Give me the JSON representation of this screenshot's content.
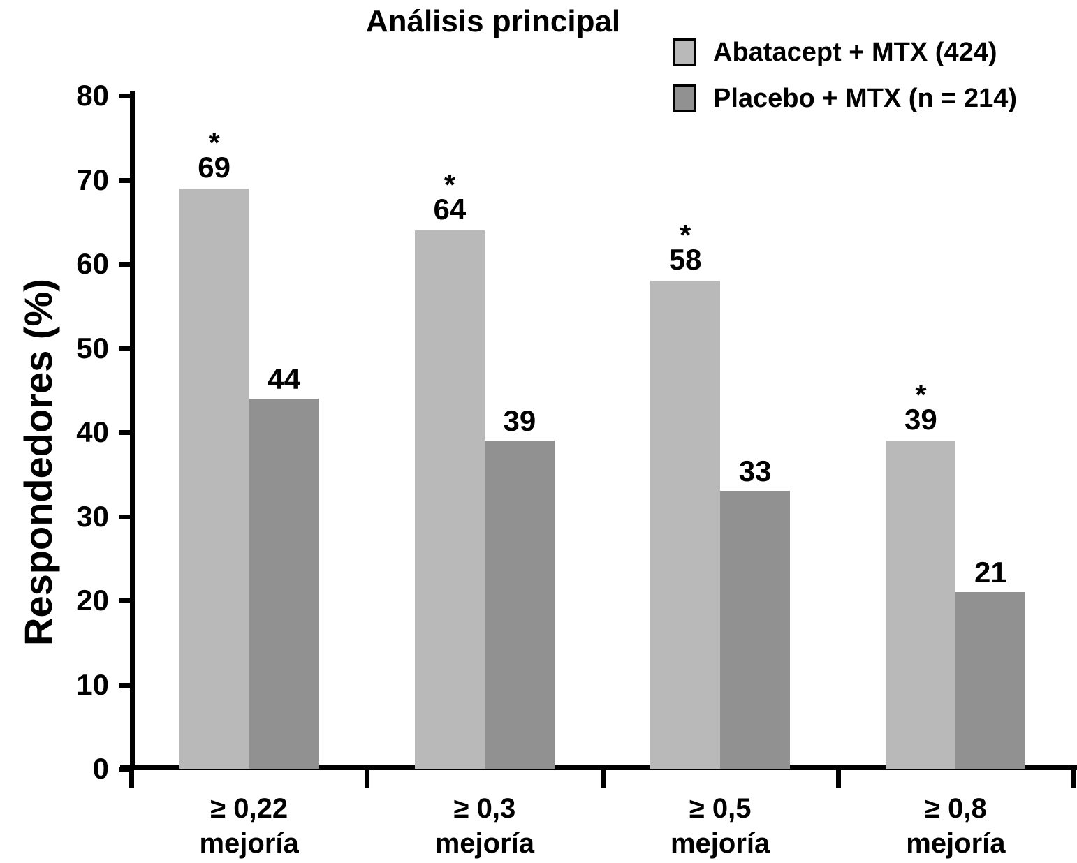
{
  "title": "Análisis principal",
  "y_axis_label": "Respondedores (%)",
  "legend": {
    "items": [
      {
        "label": "Abatacept + MTX (424)",
        "color": "#b9b9b9"
      },
      {
        "label": "Placebo + MTX (n = 214)",
        "color": "#919191"
      }
    ]
  },
  "chart_data": {
    "type": "bar",
    "title": "Análisis principal",
    "ylabel": "Respondedores (%)",
    "ylim": [
      0,
      80
    ],
    "yticks": [
      0,
      10,
      20,
      30,
      40,
      50,
      60,
      70,
      80
    ],
    "grid": false,
    "legend_position": "top-right",
    "categories": [
      "≥ 0,22\nmejoría",
      "≥ 0,3\nmejoría",
      "≥ 0,5\nmejoría",
      "≥ 0,8\nmejoría"
    ],
    "significance_marker": "*",
    "series": [
      {
        "name": "Abatacept + MTX (424)",
        "color": "#b9b9b9",
        "values": [
          69,
          64,
          58,
          39
        ],
        "significant": [
          true,
          true,
          true,
          true
        ]
      },
      {
        "name": "Placebo + MTX (n = 214)",
        "color": "#919191",
        "values": [
          44,
          39,
          33,
          21
        ],
        "significant": [
          false,
          false,
          false,
          false
        ]
      }
    ]
  },
  "colors": {
    "axis": "#000000",
    "text": "#000000",
    "background": "#ffffff"
  }
}
